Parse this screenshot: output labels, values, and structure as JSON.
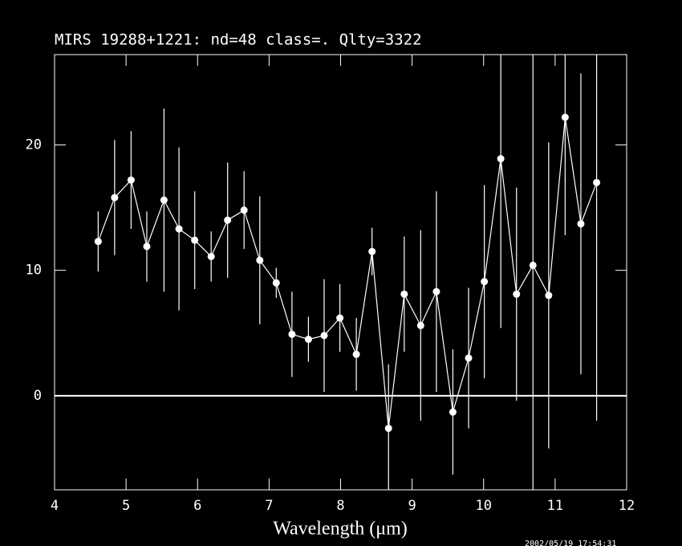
{
  "chart_data": {
    "type": "line",
    "title": "MIRS 19288+1221:    nd=48   class=.   Qlty=3322",
    "x_label": "Wavelength (μm)",
    "timestamp": "2002/05/19 17:54:31",
    "color": "#ffffff",
    "x": [
      4.61,
      4.84,
      5.07,
      5.29,
      5.53,
      5.74,
      5.96,
      6.19,
      6.42,
      6.65,
      6.87,
      7.1,
      7.32,
      7.55,
      7.77,
      7.99,
      8.22,
      8.44,
      8.67,
      8.89,
      9.12,
      9.34,
      9.57,
      9.79,
      10.01,
      10.24,
      10.46,
      10.69,
      10.91,
      11.14,
      11.36,
      11.58
    ],
    "values": [
      12.3,
      15.8,
      17.2,
      11.9,
      15.6,
      13.3,
      12.4,
      11.1,
      14.0,
      14.8,
      10.8,
      9.0,
      4.9,
      4.5,
      4.8,
      6.2,
      3.3,
      11.5,
      -2.6,
      8.1,
      5.6,
      8.3,
      -1.3,
      3.0,
      9.1,
      18.9,
      8.1,
      10.4,
      8.0,
      22.2,
      13.7,
      17.0
    ],
    "errors": [
      2.4,
      4.6,
      3.9,
      2.8,
      7.3,
      6.5,
      3.9,
      2.0,
      4.6,
      3.1,
      5.1,
      1.2,
      3.4,
      1.8,
      4.5,
      2.7,
      2.9,
      1.9,
      5.1,
      4.6,
      7.6,
      8.0,
      5.0,
      5.6,
      7.7,
      13.5,
      8.5,
      30,
      12.2,
      9.4,
      12.0,
      19.0
    ],
    "xlim": [
      4,
      12
    ],
    "ylim": [
      -7.5,
      27.2
    ],
    "xticks": [
      4,
      5,
      6,
      7,
      8,
      9,
      10,
      11,
      12
    ],
    "yticks": [
      0,
      10,
      20
    ],
    "hline": 0
  }
}
